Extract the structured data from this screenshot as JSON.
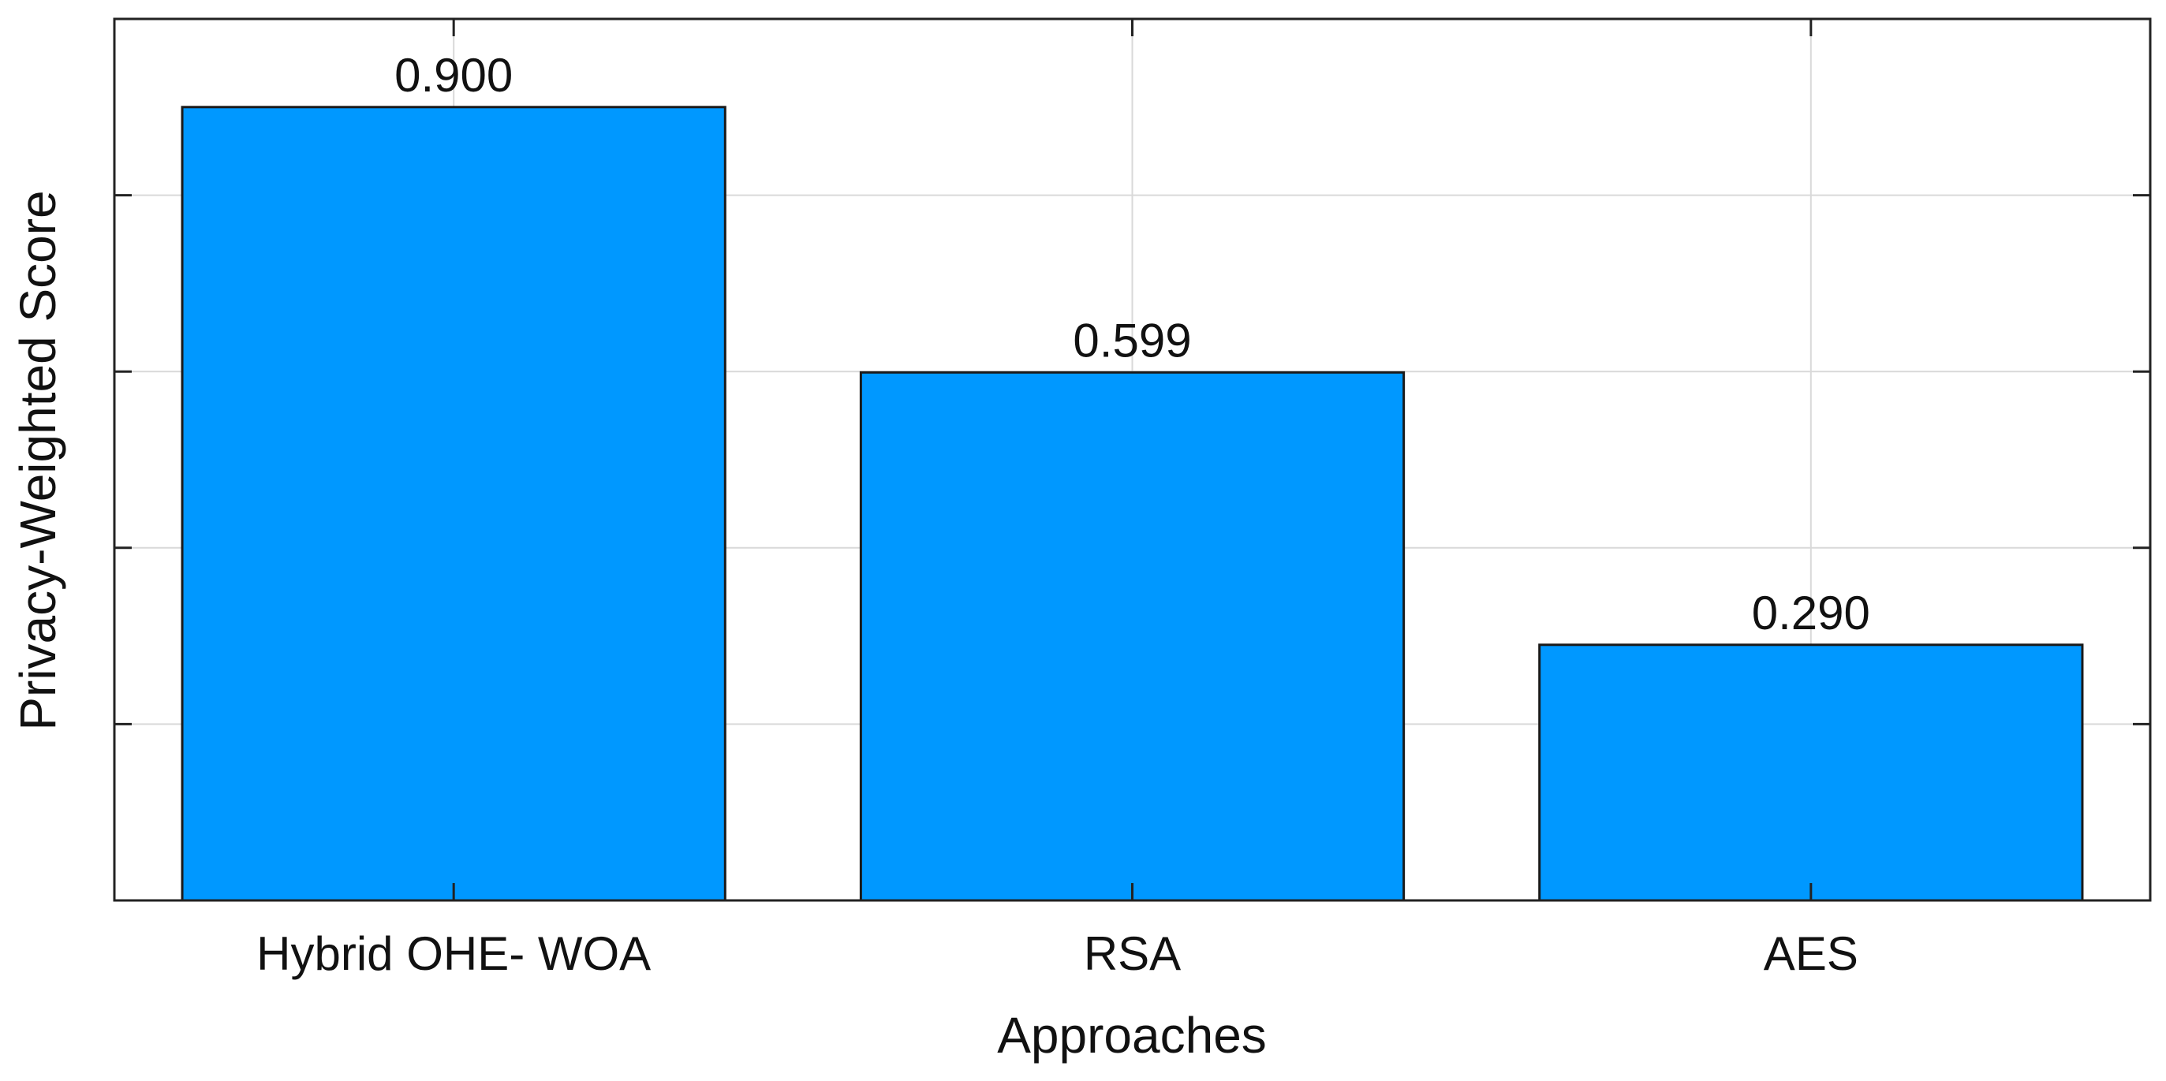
{
  "chart_data": {
    "type": "bar",
    "categories": [
      "Hybrid OHE- WOA",
      "RSA",
      "AES"
    ],
    "values": [
      0.9,
      0.599,
      0.29
    ],
    "value_labels": [
      "0.900",
      "0.599",
      "0.290"
    ],
    "xlabel": "Approaches",
    "ylabel": "Privacy-Weighted Score",
    "ylim": [
      0,
      1.0
    ],
    "y_gridlines": [
      0.2,
      0.4,
      0.6,
      0.8
    ],
    "grid": true,
    "bar_color": "#0098ff",
    "bar_edge_color": "#1a1a1a"
  }
}
